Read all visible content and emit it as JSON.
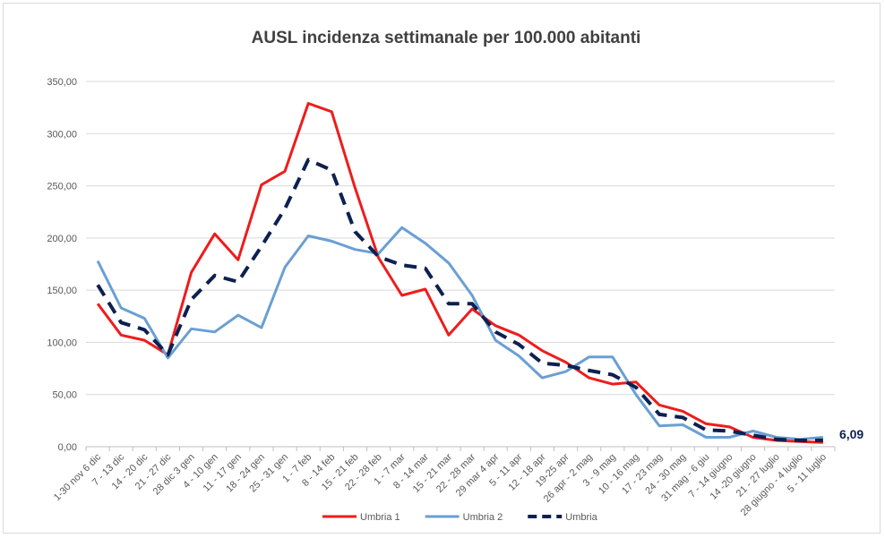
{
  "chart_data": {
    "type": "line",
    "title": "AUSL incidenza settimanale  per 100.000 abitanti",
    "xlabel": "",
    "ylabel": "",
    "ylim": [
      0,
      350
    ],
    "yticks": [
      "0,00",
      "50,00",
      "100,00",
      "150,00",
      "200,00",
      "250,00",
      "300,00",
      "350,00"
    ],
    "grid": true,
    "legend_position": "bottom",
    "categories": [
      "1-30 nov 6 dic",
      "7 - 13 dic",
      "14 - 20 dic",
      "21 - 27 dic",
      "28 dic 3 gen",
      "4 - 10 gen",
      "11 - 17 gen",
      "18 - 24 gen",
      "25 - 31 gen",
      "1 - 7 feb",
      "8 - 14 feb",
      "15 - 21 feb",
      "22 - 28 feb",
      "1 - 7 mar",
      "8 - 14 mar",
      "15 - 21 mar",
      "22 - 28 mar",
      "29 mar 4 apr",
      "5 - 11 apr",
      "12 - 18 apr",
      "19-25 apr",
      "26 apr - 2 mag",
      "3 - 9 mag",
      "10 - 16 mag",
      "17 - 23 mag",
      "24 - 30 mag",
      "31 mag - 6 giu",
      "7 - 14 giugno",
      "14 -20 giugno",
      "21 - 27 luglio",
      "28 giugno - 4 luglio",
      "5 - 11 luglio"
    ],
    "series": [
      {
        "name": "Umbria 1",
        "color": "#ee1c1c",
        "dash": "solid",
        "values": [
          137,
          107,
          102,
          88,
          167,
          204,
          179,
          251,
          264,
          329,
          321,
          248,
          181,
          145,
          151,
          107,
          132,
          116,
          107,
          92,
          81,
          66,
          60,
          62,
          40,
          34,
          22,
          19,
          9,
          6,
          5,
          4
        ]
      },
      {
        "name": "Umbria 2",
        "color": "#6a9fd4",
        "dash": "solid",
        "values": [
          178,
          133,
          123,
          85,
          113,
          110,
          126,
          114,
          172,
          202,
          197,
          189,
          185,
          210,
          195,
          176,
          145,
          102,
          87,
          66,
          72,
          86,
          86,
          50,
          20,
          21,
          9,
          9,
          15,
          9,
          7,
          9
        ]
      },
      {
        "name": "Umbria",
        "color": "#0c2150",
        "dash": "dashed",
        "values": [
          155,
          119,
          112,
          88,
          141,
          164,
          158,
          192,
          228,
          275,
          265,
          206,
          182,
          174,
          171,
          137,
          137,
          110,
          98,
          80,
          78,
          73,
          69,
          57,
          31,
          28,
          16,
          15,
          11,
          7,
          6,
          6.09
        ]
      }
    ],
    "annotation": "6,09"
  }
}
